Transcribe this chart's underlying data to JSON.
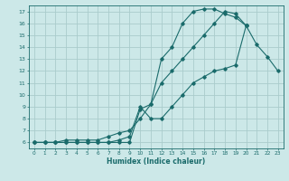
{
  "xlabel": "Humidex (Indice chaleur)",
  "bg_color": "#cce8e8",
  "grid_color": "#aacccc",
  "line_color": "#1a6b6b",
  "xlim": [
    -0.5,
    23.5
  ],
  "ylim": [
    5.5,
    17.5
  ],
  "xticks": [
    0,
    1,
    2,
    3,
    4,
    5,
    6,
    7,
    8,
    9,
    10,
    11,
    12,
    13,
    14,
    15,
    16,
    17,
    18,
    19,
    20,
    21,
    22,
    23
  ],
  "yticks": [
    6,
    7,
    8,
    9,
    10,
    11,
    12,
    13,
    14,
    15,
    16,
    17
  ],
  "line1_x": [
    0,
    1,
    2,
    3,
    4,
    5,
    6,
    7,
    8,
    9,
    10,
    11,
    12,
    13,
    14,
    15,
    16,
    17,
    18,
    19,
    20,
    21,
    22,
    23
  ],
  "line1_y": [
    6,
    6,
    6,
    6,
    6,
    6,
    6,
    6,
    6,
    6,
    8.8,
    9.2,
    13,
    14,
    16,
    17,
    17.2,
    17.2,
    16.8,
    16.5,
    15.8,
    14.2,
    13.2,
    12
  ],
  "line2_x": [
    0,
    1,
    2,
    3,
    4,
    5,
    6,
    7,
    8,
    9,
    10,
    11,
    12,
    13,
    14,
    15,
    16,
    17,
    18,
    19,
    20,
    21,
    22,
    23
  ],
  "line2_y": [
    6,
    6,
    6,
    6,
    6,
    6,
    6,
    6,
    6.2,
    6.5,
    9,
    8,
    8,
    9,
    10,
    11,
    11.5,
    12,
    12.2,
    12.5,
    15.8,
    null,
    null,
    null
  ],
  "line3_x": [
    0,
    1,
    2,
    3,
    4,
    5,
    6,
    7,
    8,
    9,
    10,
    11,
    12,
    13,
    14,
    15,
    16,
    17,
    18,
    19,
    20,
    21,
    22,
    23
  ],
  "line3_y": [
    6,
    6,
    6,
    6.2,
    6.2,
    6.2,
    6.2,
    6.5,
    6.8,
    7,
    8,
    9.2,
    11,
    12,
    13,
    14,
    15,
    16,
    17,
    16.8,
    15.8,
    null,
    null,
    null
  ]
}
